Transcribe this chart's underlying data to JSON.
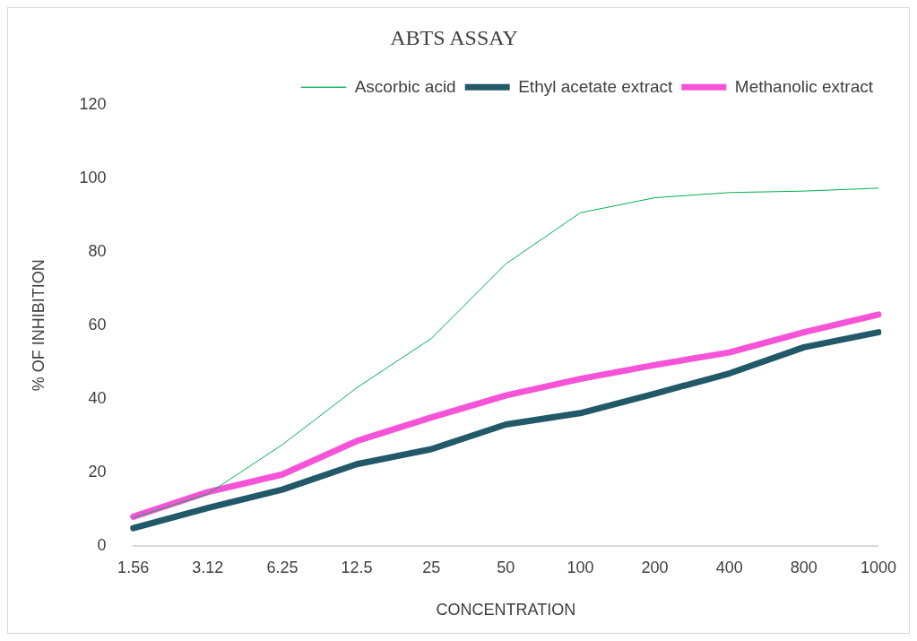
{
  "chart_data": {
    "type": "line",
    "title": "ABTS ASSAY",
    "xlabel": "CONCENTRATION",
    "ylabel": "% OF INHIBITION",
    "categories": [
      "1.56",
      "3.12",
      "6.25",
      "12.5",
      "25",
      "50",
      "100",
      "200",
      "400",
      "800",
      "1000"
    ],
    "series": [
      {
        "name": "Ascorbic acid",
        "color": "#00b050",
        "values": [
          7.6,
          14.1,
          27.5,
          43.0,
          56.4,
          76.7,
          90.6,
          94.7,
          96.1,
          96.5,
          97.3
        ]
      },
      {
        "name": "Ethyl acetate extract",
        "color": "#215968",
        "values": [
          4.8,
          10.3,
          15.3,
          22.2,
          26.3,
          33.0,
          36.1,
          41.4,
          46.9,
          54.0,
          58.1
        ]
      },
      {
        "name": "Methanolic extract",
        "color": "#f653d8",
        "values": [
          7.9,
          14.6,
          19.4,
          28.5,
          34.9,
          40.9,
          45.4,
          49.2,
          52.6,
          58.1,
          62.9
        ]
      }
    ],
    "ylim": [
      0,
      120
    ],
    "yticks": [
      0,
      20,
      40,
      60,
      80,
      100,
      120
    ],
    "grid": false,
    "legend": "top",
    "marker": "none"
  }
}
